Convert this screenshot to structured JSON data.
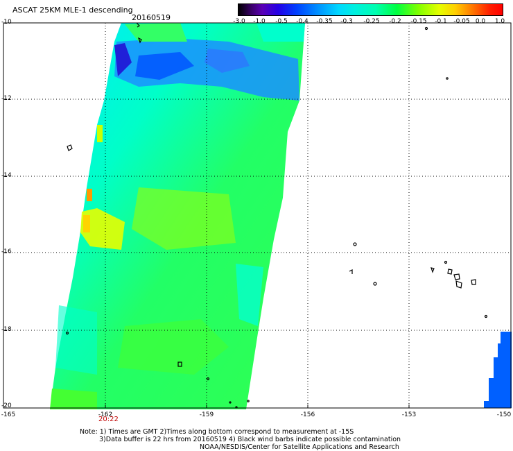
{
  "header": {
    "title": "ASCAT 25KM MLE-1 descending",
    "date": "20160519"
  },
  "colorbar": {
    "labels": [
      "-3.0",
      "-1.0",
      "-0.5",
      "-0.4",
      "-0.35",
      "-0.3",
      "-0.25",
      "-0.2",
      "-0.15",
      "-0.1",
      "-0.05",
      "0.0",
      "1.0"
    ]
  },
  "axes": {
    "y_ticks": [
      "-10",
      "-12",
      "-14",
      "-16",
      "-18",
      "-20"
    ],
    "x_ticks": [
      "-165",
      "-162",
      "-159",
      "-156",
      "-153",
      "-150"
    ],
    "time_label": "20:22"
  },
  "notes": {
    "line1": "Note: 1) Times are GMT 2)Times along bottom correspond to measurement at -15S",
    "line2": "3)Data buffer is 22 hrs from 20160519 4) Black wind barbs indicate possible contamination",
    "line3": "NOAA/NESDIS/Center for Satellite Applications and Research"
  }
}
